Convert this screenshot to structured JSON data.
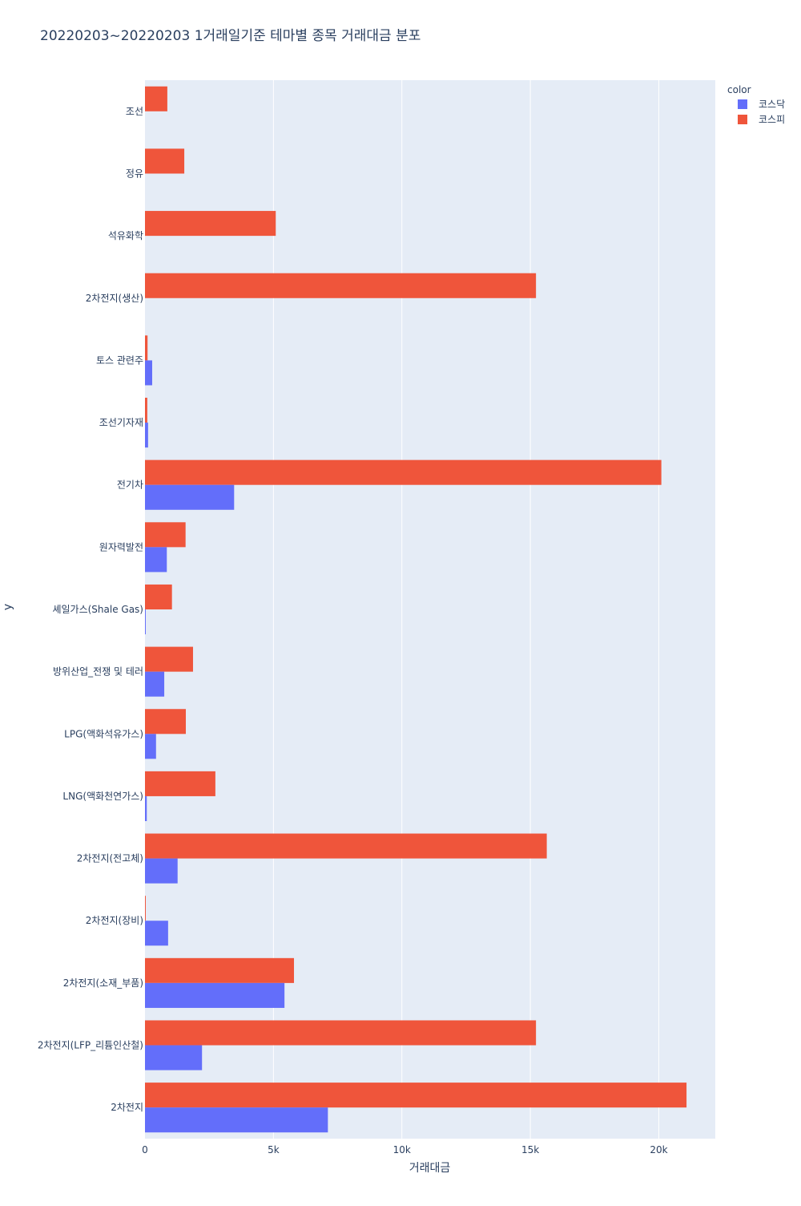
{
  "chart_data": {
    "type": "bar",
    "orientation": "horizontal",
    "barmode": "group",
    "title": "20220203~20220203 1거래일기준 테마별 종목 거래대금 분포",
    "xlabel": "거래대금",
    "ylabel": "y",
    "xlim": [
      0,
      22200
    ],
    "xticks": [
      0,
      5000,
      10000,
      15000,
      20000
    ],
    "xtick_labels": [
      "0",
      "5k",
      "10k",
      "15k",
      "20k"
    ],
    "grid": true,
    "legend_title": "color",
    "legend_position": "top-right",
    "categories": [
      "조선",
      "정유",
      "석유화학",
      "2차전지(생산)",
      "토스 관련주",
      "조선기자재",
      "전기차",
      "원자력발전",
      "셰일가스(Shale Gas)",
      "방위산업_전쟁 및 테러",
      "LPG(액화석유가스)",
      "LNG(액화천연가스)",
      "2차전지(전고체)",
      "2차전지(장비)",
      "2차전지(소재_부품)",
      "2차전지(LFP_리튬인산철)",
      "2차전지"
    ],
    "series": [
      {
        "name": "코스닥",
        "color": "#636efa",
        "values": [
          0,
          0,
          0,
          0,
          280,
          120,
          3470,
          850,
          30,
          750,
          430,
          70,
          1270,
          900,
          5430,
          2220,
          7120
        ]
      },
      {
        "name": "코스피",
        "color": "#ef553b",
        "values": [
          870,
          1530,
          5090,
          15220,
          100,
          90,
          20100,
          1580,
          1050,
          1870,
          1590,
          2740,
          15640,
          30,
          5800,
          15220,
          21080
        ]
      }
    ]
  }
}
